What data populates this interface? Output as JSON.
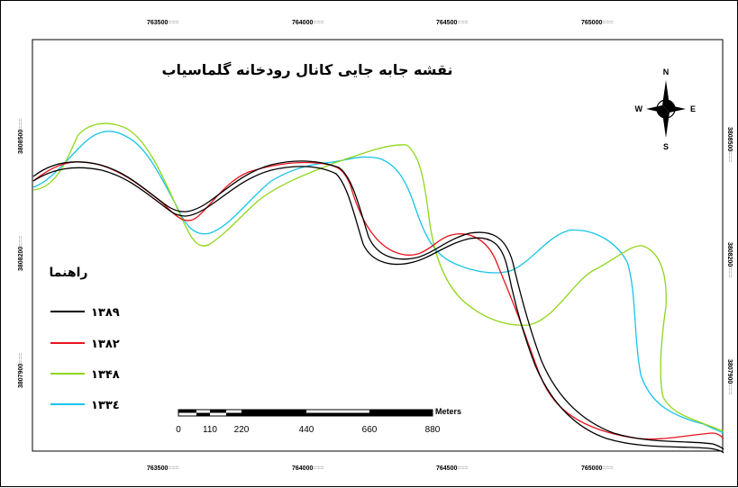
{
  "title": "نقشه جابه جایی کانال رودخانه گلماسیاب",
  "north_arrow": {
    "icon": "north-arrow-icon",
    "n": "N",
    "s": "S",
    "e": "E",
    "w": "W"
  },
  "legend": {
    "title": "راهنما",
    "items": [
      {
        "label": "۱۳۸۹",
        "color": "#000000"
      },
      {
        "label": "۱۳۸۲",
        "color": "#e8141c"
      },
      {
        "label": "۱۳۴۸",
        "color": "#8fd619"
      },
      {
        "label": "۱۳۳٤",
        "color": "#18c4e8"
      }
    ]
  },
  "scale_bar": {
    "unit": "Meters",
    "labels": [
      "0",
      "110",
      "220",
      "440",
      "660",
      "880"
    ]
  },
  "grid": {
    "top_ticks": [
      "763500",
      "764000",
      "764500",
      "765000"
    ],
    "bottom_ticks": [
      "763500",
      "764000",
      "764500",
      "765000"
    ],
    "left_ticks": [
      "3808500",
      "3808200",
      "3807900"
    ],
    "right_ticks": [
      "3808500",
      "3808200",
      "3807900"
    ],
    "tick_suffix": "==="
  }
}
